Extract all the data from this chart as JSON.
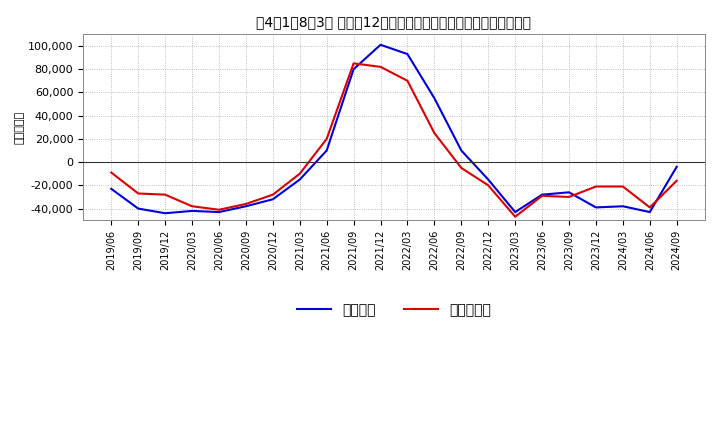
{
  "title": "４4１1１8１3］ 利益の12か月移動合計の対前年同期増減額の推移",
  "ylabel": "（百万円）",
  "background_color": "#ffffff",
  "plot_bg_color": "#ffffff",
  "grid_color": "#aaaaaa",
  "zero_line_color": "#333333",
  "ylim": [
    -50000,
    110000
  ],
  "yticks": [
    -40000,
    -20000,
    0,
    20000,
    40000,
    60000,
    80000,
    100000
  ],
  "line_blue": "#0000dd",
  "line_red": "#dd0000",
  "legend_blue": "経常利益",
  "legend_red": "当期純利益",
  "dates": [
    "2019/06",
    "2019/09",
    "2019/12",
    "2020/03",
    "2020/06",
    "2020/09",
    "2020/12",
    "2021/03",
    "2021/06",
    "2021/09",
    "2021/12",
    "2022/03",
    "2022/06",
    "2022/09",
    "2022/12",
    "2023/03",
    "2023/06",
    "2023/09",
    "2023/12",
    "2024/03",
    "2024/06",
    "2024/09"
  ],
  "keijo_rieki": [
    -23000,
    -40000,
    -44000,
    -42000,
    -43000,
    -38000,
    -32000,
    -15000,
    10000,
    80000,
    101000,
    93000,
    55000,
    10000,
    -15000,
    -43000,
    -28000,
    -26000,
    -39000,
    -38000,
    -43000,
    -4000
  ],
  "touki_jun_rieki": [
    -9000,
    -27000,
    -28000,
    -38000,
    -41000,
    -36000,
    -28000,
    -10000,
    20000,
    85000,
    82000,
    70000,
    25000,
    -5000,
    -20000,
    -47000,
    -29000,
    -30000,
    -21000,
    -21000,
    -39000,
    -16000
  ]
}
